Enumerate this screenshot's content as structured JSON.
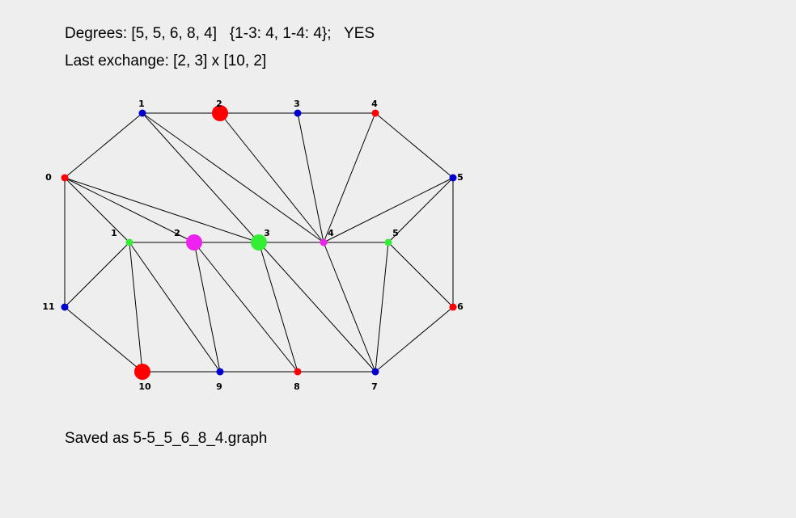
{
  "header": {
    "degrees_text": "Degrees: [5, 5, 6, 8, 4]   {1-3: 4, 1-4: 4};   YES",
    "exchange_text": "Last exchange: [2, 3] x [10, 2]"
  },
  "footer": {
    "saved_text": "Saved as 5-5_5_6_8_4.graph"
  },
  "colors": {
    "red": "#ff0000",
    "blue": "#0000cc",
    "green": "#33ee33",
    "magenta": "#ee22ee",
    "edge": "#000000"
  },
  "graph": {
    "outer_vertices": [
      {
        "id": "o0",
        "label": "0",
        "color": "red",
        "big": false
      },
      {
        "id": "o1",
        "label": "1",
        "color": "blue",
        "big": false
      },
      {
        "id": "o2",
        "label": "2",
        "color": "red",
        "big": true
      },
      {
        "id": "o3",
        "label": "3",
        "color": "blue",
        "big": false
      },
      {
        "id": "o4",
        "label": "4",
        "color": "red",
        "big": false
      },
      {
        "id": "o5",
        "label": "5",
        "color": "blue",
        "big": false
      },
      {
        "id": "o6",
        "label": "6",
        "color": "red",
        "big": false
      },
      {
        "id": "o7",
        "label": "7",
        "color": "blue",
        "big": false
      },
      {
        "id": "o8",
        "label": "8",
        "color": "red",
        "big": false
      },
      {
        "id": "o9",
        "label": "9",
        "color": "blue",
        "big": false
      },
      {
        "id": "o10",
        "label": "10",
        "color": "red",
        "big": true
      },
      {
        "id": "o11",
        "label": "11",
        "color": "blue",
        "big": false
      }
    ],
    "inner_vertices": [
      {
        "id": "i1",
        "label": "1",
        "color": "green",
        "big": false
      },
      {
        "id": "i2",
        "label": "2",
        "color": "magenta",
        "big": true
      },
      {
        "id": "i3",
        "label": "3",
        "color": "green",
        "big": true
      },
      {
        "id": "i4",
        "label": "4",
        "color": "magenta",
        "big": false
      },
      {
        "id": "i5",
        "label": "5",
        "color": "green",
        "big": false
      }
    ],
    "edges": [
      [
        "o0",
        "o1"
      ],
      [
        "o1",
        "o2"
      ],
      [
        "o2",
        "o3"
      ],
      [
        "o3",
        "o4"
      ],
      [
        "o4",
        "o5"
      ],
      [
        "o5",
        "o6"
      ],
      [
        "o6",
        "o7"
      ],
      [
        "o7",
        "o8"
      ],
      [
        "o8",
        "o9"
      ],
      [
        "o9",
        "o10"
      ],
      [
        "o10",
        "o11"
      ],
      [
        "o11",
        "o0"
      ],
      [
        "i1",
        "i2"
      ],
      [
        "i2",
        "i3"
      ],
      [
        "i3",
        "i4"
      ],
      [
        "i4",
        "i5"
      ],
      [
        "o1",
        "i3"
      ],
      [
        "o1",
        "i4"
      ],
      [
        "o2",
        "i4"
      ],
      [
        "o3",
        "i4"
      ],
      [
        "o4",
        "i4"
      ],
      [
        "o5",
        "i4"
      ],
      [
        "o5",
        "i5"
      ],
      [
        "o0",
        "i1"
      ],
      [
        "o0",
        "i2"
      ],
      [
        "o0",
        "i3"
      ],
      [
        "o11",
        "i1"
      ],
      [
        "i1",
        "o10"
      ],
      [
        "i1",
        "o9"
      ],
      [
        "i2",
        "o9"
      ],
      [
        "i2",
        "o8"
      ],
      [
        "i3",
        "o8"
      ],
      [
        "i3",
        "o7"
      ],
      [
        "i4",
        "o7"
      ],
      [
        "i5",
        "o7"
      ],
      [
        "i5",
        "o6"
      ]
    ]
  }
}
